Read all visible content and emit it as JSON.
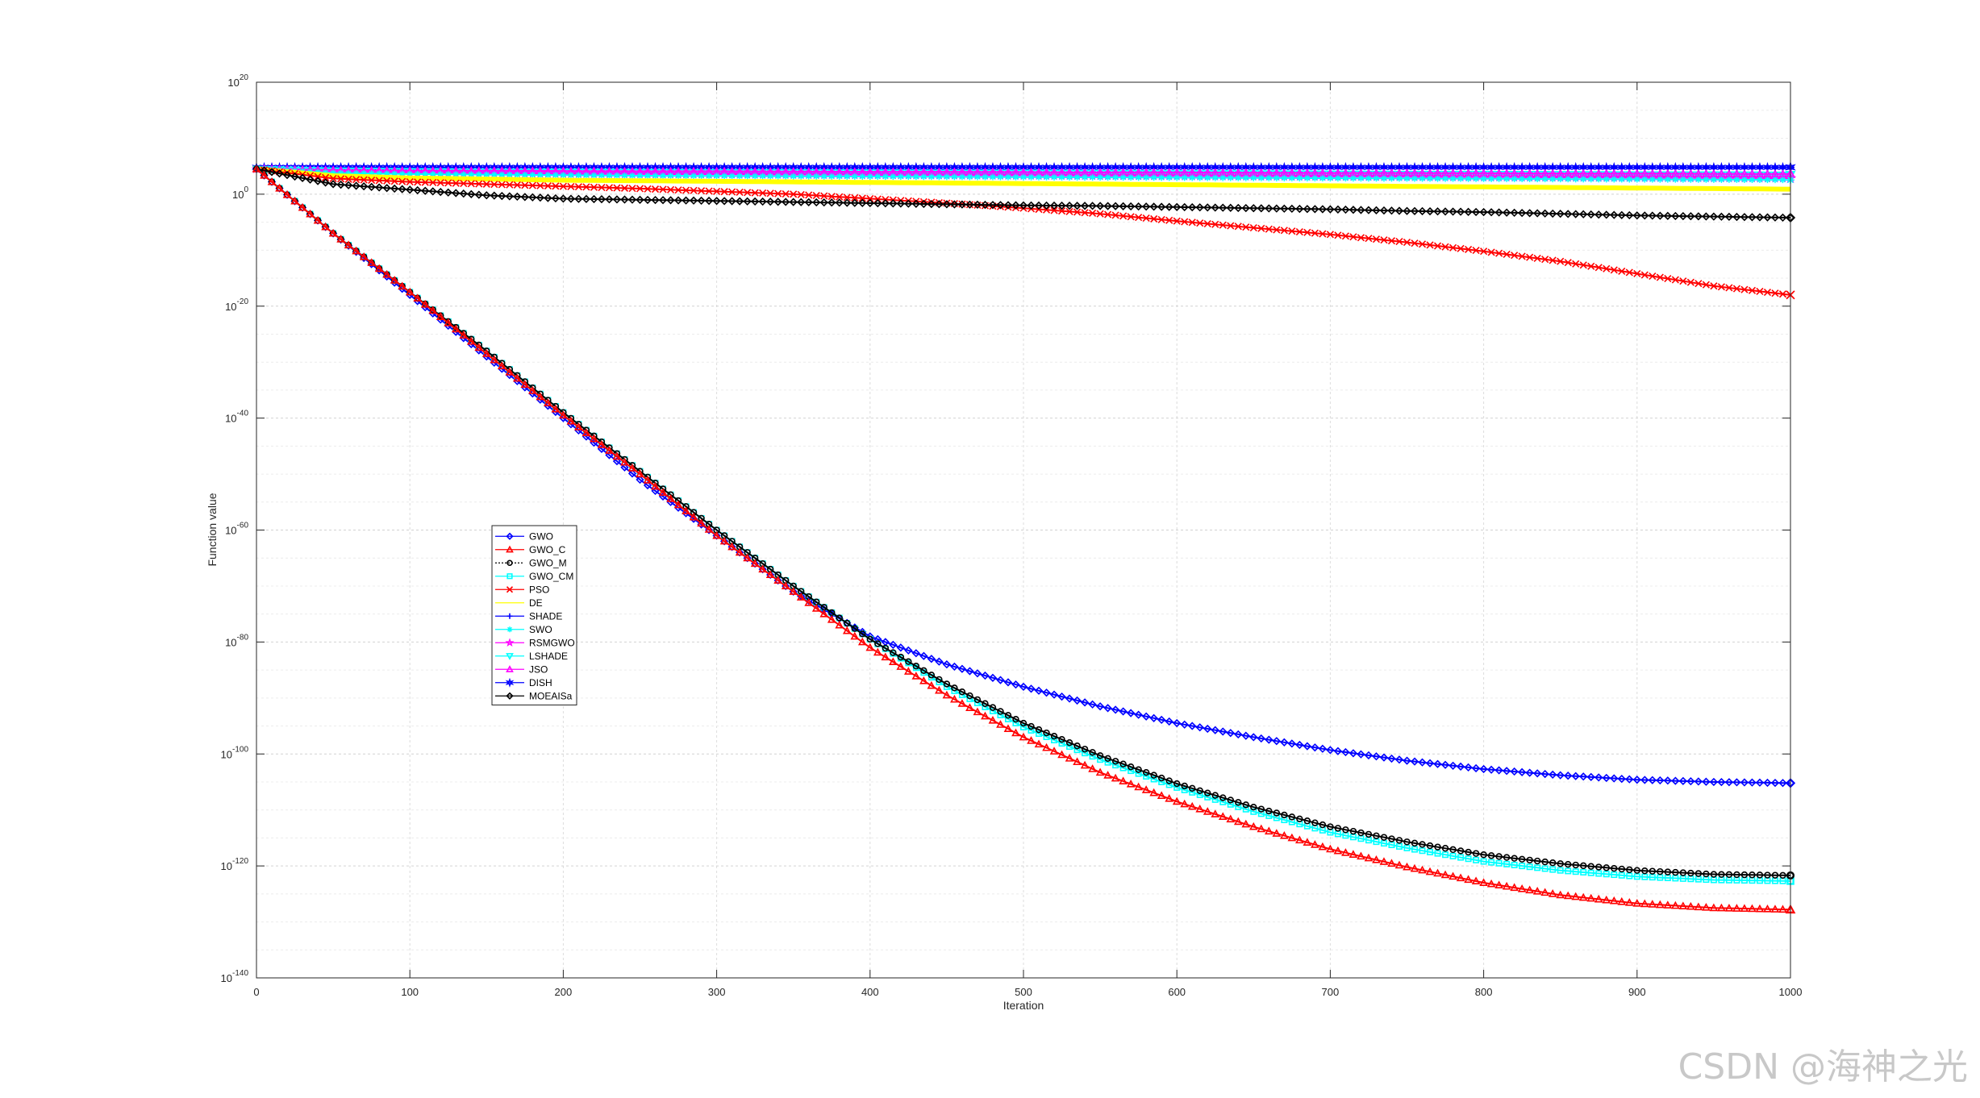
{
  "watermark": "CSDN @海神之光",
  "chart_data": {
    "type": "line",
    "xlabel": "Iteration",
    "ylabel": "Function value",
    "xlim": [
      0,
      1000
    ],
    "ylim_log10": [
      -140,
      20
    ],
    "yscale": "log",
    "grid": true,
    "legend_position": "center-left",
    "x_ticks": [
      "0",
      "100",
      "200",
      "300",
      "400",
      "500",
      "600",
      "700",
      "800",
      "900",
      "1000"
    ],
    "y_ticks": [
      {
        "base": "10",
        "exp": "20"
      },
      {
        "base": "10",
        "exp": "0"
      },
      {
        "base": "10",
        "exp": "-20"
      },
      {
        "base": "10",
        "exp": "-40"
      },
      {
        "base": "10",
        "exp": "-60"
      },
      {
        "base": "10",
        "exp": "-80"
      },
      {
        "base": "10",
        "exp": "-100"
      },
      {
        "base": "10",
        "exp": "-120"
      },
      {
        "base": "10",
        "exp": "-140"
      }
    ],
    "x": [
      0,
      50,
      100,
      150,
      200,
      250,
      300,
      350,
      400,
      450,
      500,
      550,
      600,
      650,
      700,
      750,
      800,
      850,
      900,
      950,
      1000
    ],
    "series": [
      {
        "name": "GWO",
        "color": "#0000ff",
        "marker": "diamond",
        "log10_values": [
          4.5,
          -7,
          -18,
          -29,
          -40,
          -51,
          -61,
          -71,
          -79,
          -84,
          -88,
          -91.5,
          -94.5,
          -97,
          -99.3,
          -101.2,
          -102.7,
          -103.8,
          -104.6,
          -105,
          -105.2
        ]
      },
      {
        "name": "GWO_C",
        "color": "#ff0000",
        "marker": "triangle",
        "log10_values": [
          4.5,
          -7,
          -17.5,
          -28.5,
          -39.5,
          -50,
          -61,
          -71,
          -81,
          -89.5,
          -97,
          -103.3,
          -108.5,
          -113,
          -117,
          -120.2,
          -123,
          -125.2,
          -126.7,
          -127.5,
          -127.8
        ]
      },
      {
        "name": "GWO_M",
        "color": "#000000",
        "marker": "circle",
        "log10_values": [
          4.5,
          -7,
          -17.5,
          -28,
          -39,
          -49.5,
          -60,
          -70,
          -79.5,
          -87.5,
          -94.5,
          -100.3,
          -105.3,
          -109.5,
          -113,
          -115.7,
          -118,
          -119.6,
          -120.8,
          -121.5,
          -121.7
        ]
      },
      {
        "name": "GWO_CM",
        "color": "#00ffff",
        "marker": "square",
        "log10_values": [
          4.5,
          -7,
          -17.5,
          -28,
          -39,
          -49.5,
          -60,
          -70,
          -79.5,
          -88,
          -95.2,
          -101,
          -106,
          -110.3,
          -114,
          -116.8,
          -119.2,
          -120.8,
          -121.9,
          -122.5,
          -122.7
        ]
      },
      {
        "name": "PSO",
        "color": "#ff0000",
        "marker": "x",
        "log10_values": [
          4.5,
          2.8,
          2.2,
          1.8,
          1.4,
          1.0,
          0.5,
          0,
          -0.8,
          -1.6,
          -2.5,
          -3.5,
          -4.8,
          -6,
          -7.2,
          -8.6,
          -10.2,
          -12,
          -14.2,
          -16.4,
          -18
        ]
      },
      {
        "name": "DE",
        "color": "#ffff00",
        "marker": "none",
        "log10_values": [
          4.5,
          3.3,
          2.9,
          2.7,
          2.5,
          2.4,
          2.3,
          2.2,
          2.1,
          2.0,
          1.9,
          1.8,
          1.7,
          1.6,
          1.5,
          1.4,
          1.3,
          1.2,
          1.1,
          1.0,
          0.9
        ]
      },
      {
        "name": "SHADE",
        "color": "#0000ff",
        "marker": "plus",
        "log10_values": [
          4.8,
          4.8,
          4.8,
          4.8,
          4.8,
          4.8,
          4.8,
          4.8,
          4.8,
          4.8,
          4.8,
          4.8,
          4.8,
          4.8,
          4.8,
          4.8,
          4.8,
          4.8,
          4.8,
          4.8,
          4.8
        ]
      },
      {
        "name": "SWO",
        "color": "#00ffff",
        "marker": "asterisk",
        "log10_values": [
          4.5,
          3.8,
          3.6,
          3.5,
          3.4,
          3.3,
          3.25,
          3.2,
          3.15,
          3.1,
          3.05,
          3.0,
          2.95,
          2.9,
          2.85,
          2.8,
          2.75,
          2.7,
          2.65,
          2.6,
          2.55
        ]
      },
      {
        "name": "RSMGWO",
        "color": "#ff00ff",
        "marker": "pentagram",
        "log10_values": [
          4.5,
          3.9,
          3.8,
          3.7,
          3.65,
          3.6,
          3.55,
          3.5,
          3.45,
          3.4,
          3.35,
          3.3,
          3.25,
          3.2,
          3.15,
          3.1,
          3.05,
          3.0,
          2.95,
          2.9,
          2.85
        ]
      },
      {
        "name": "LSHADE",
        "color": "#00ffff",
        "marker": "triangle-down",
        "log10_values": [
          4.5,
          4.2,
          4.1,
          4.0,
          4.0,
          3.95,
          3.9,
          3.9,
          3.85,
          3.8,
          3.8,
          3.75,
          3.7,
          3.7,
          3.65,
          3.6,
          3.6,
          3.55,
          3.5,
          3.5,
          3.45
        ]
      },
      {
        "name": "JSO",
        "color": "#ff00ff",
        "marker": "triangle",
        "log10_values": [
          4.5,
          4.3,
          4.2,
          4.2,
          4.15,
          4.1,
          4.1,
          4.05,
          4.0,
          4.0,
          3.95,
          3.9,
          3.9,
          3.85,
          3.8,
          3.8,
          3.75,
          3.7,
          3.7,
          3.65,
          3.6
        ]
      },
      {
        "name": "DISH",
        "color": "#0000ff",
        "marker": "hexagram",
        "log10_values": [
          4.8,
          4.8,
          4.8,
          4.8,
          4.8,
          4.8,
          4.8,
          4.8,
          4.8,
          4.8,
          4.8,
          4.8,
          4.8,
          4.8,
          4.8,
          4.8,
          4.8,
          4.8,
          4.8,
          4.8,
          4.8
        ]
      },
      {
        "name": "MOEAISa",
        "color": "#000000",
        "marker": "diamond",
        "log10_values": [
          4.5,
          1.8,
          0.8,
          -0.2,
          -0.8,
          -1.0,
          -1.2,
          -1.4,
          -1.6,
          -1.8,
          -2.0,
          -2.1,
          -2.3,
          -2.5,
          -2.7,
          -3.0,
          -3.2,
          -3.5,
          -3.8,
          -4.0,
          -4.2
        ]
      }
    ]
  }
}
